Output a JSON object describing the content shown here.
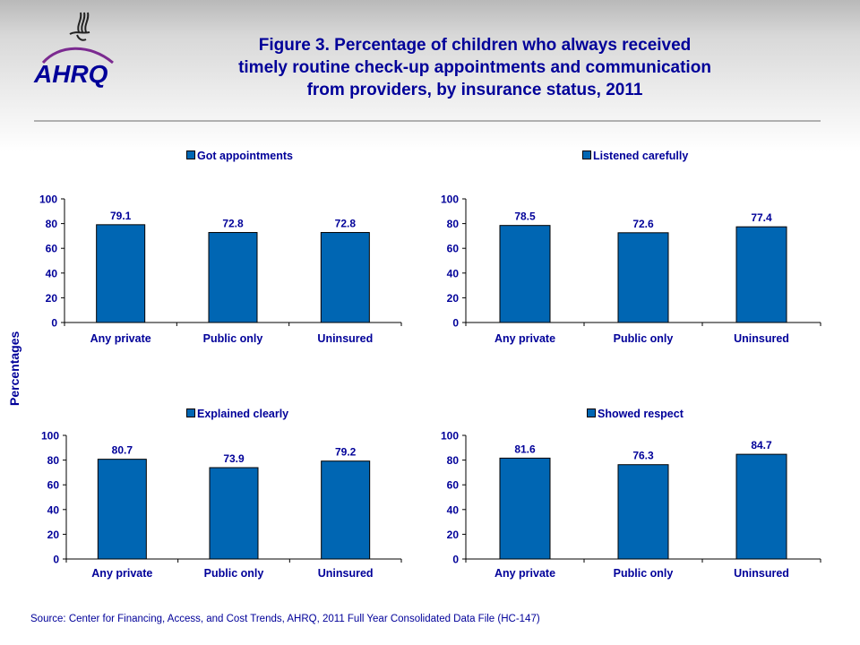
{
  "header": {
    "logo_text": "AHRQ",
    "logo_emblem": "hhs-eagle-icon",
    "title_lines": [
      "Figure 3. Percentage of children who always received",
      "timely routine check-up appointments and communication",
      "from providers, by insurance status, 2011"
    ]
  },
  "colors": {
    "bar": "#0066b3",
    "text": "#000099",
    "logo": "#7b2a90"
  },
  "shared_ylabel": "Percentages",
  "footer": {
    "source": "Source: Center for Financing, Access, and Cost Trends, AHRQ, 2011 Full Year Consolidated Data File (HC-147)"
  },
  "chart_data": [
    {
      "type": "bar",
      "title": "",
      "legend": "Got appointments",
      "legend_position": "top",
      "categories": [
        "Any private",
        "Public only",
        "Uninsured"
      ],
      "values": [
        79.1,
        72.8,
        72.8
      ],
      "value_labels": [
        "79.1",
        "72.8",
        "72.8"
      ],
      "xlabel": "",
      "ylabel": "Percentages",
      "ylim": [
        0,
        100
      ],
      "yticks": [
        0,
        20,
        40,
        60,
        80,
        100
      ],
      "ytick_labels": [
        "0",
        "20",
        "40",
        "60",
        "80",
        "100"
      ],
      "grid": false
    },
    {
      "type": "bar",
      "title": "",
      "legend": "Listened carefully",
      "legend_position": "top",
      "categories": [
        "Any private",
        "Public only",
        "Uninsured"
      ],
      "values": [
        78.5,
        72.6,
        77.4
      ],
      "value_labels": [
        "78.5",
        "72.6",
        "77.4"
      ],
      "xlabel": "",
      "ylabel": "Percentages",
      "ylim": [
        0,
        100
      ],
      "yticks": [
        0,
        20,
        40,
        60,
        80,
        100
      ],
      "ytick_labels": [
        "0",
        "20",
        "40",
        "60",
        "80",
        "100"
      ],
      "grid": false
    },
    {
      "type": "bar",
      "title": "",
      "legend": "Explained clearly",
      "legend_position": "top",
      "categories": [
        "Any private",
        "Public only",
        "Uninsured"
      ],
      "values": [
        80.7,
        73.9,
        79.2
      ],
      "value_labels": [
        "80.7",
        "73.9",
        "79.2"
      ],
      "xlabel": "",
      "ylabel": "Percentages",
      "ylim": [
        0,
        100
      ],
      "yticks": [
        0,
        20,
        40,
        60,
        80,
        100
      ],
      "ytick_labels": [
        "0",
        "20",
        "40",
        "60",
        "80",
        "100"
      ],
      "grid": false
    },
    {
      "type": "bar",
      "title": "",
      "legend": "Showed respect",
      "legend_position": "top",
      "categories": [
        "Any private",
        "Public only",
        "Uninsured"
      ],
      "values": [
        81.6,
        76.3,
        84.7
      ],
      "value_labels": [
        "81.6",
        "76.3",
        "84.7"
      ],
      "xlabel": "",
      "ylabel": "Percentages",
      "ylim": [
        0,
        100
      ],
      "yticks": [
        0,
        20,
        40,
        60,
        80,
        100
      ],
      "ytick_labels": [
        "0",
        "20",
        "40",
        "60",
        "80",
        "100"
      ],
      "grid": false
    }
  ]
}
